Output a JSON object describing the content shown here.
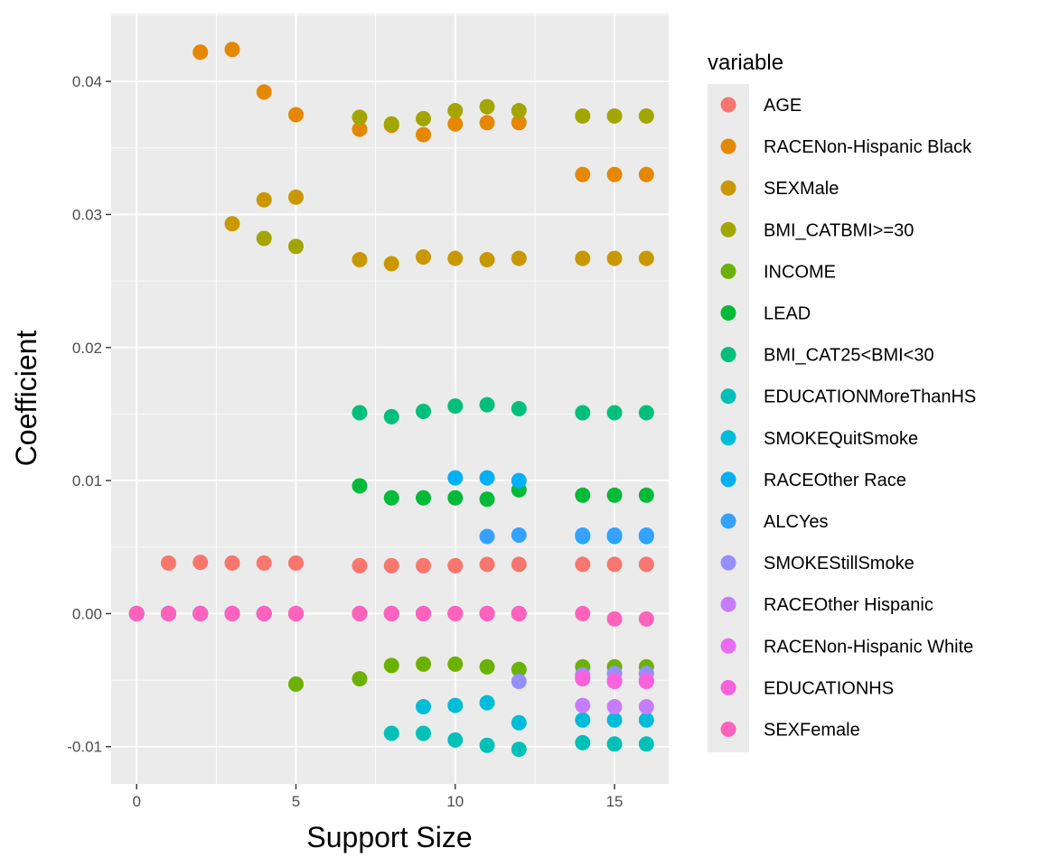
{
  "chart_data": {
    "type": "scatter",
    "title": "",
    "xlabel": "Support Size",
    "ylabel": "Coefficient",
    "xlim": [
      -0.8,
      16.7
    ],
    "ylim": [
      -0.0128,
      0.0451
    ],
    "x_ticks": [
      0,
      5,
      10,
      15
    ],
    "x_tick_labels": [
      "0",
      "5",
      "10",
      "15"
    ],
    "y_ticks": [
      -0.01,
      0.0,
      0.01,
      0.02,
      0.03,
      0.04
    ],
    "y_tick_labels": [
      "-0.01",
      "0.00",
      "0.01",
      "0.02",
      "0.03",
      "0.04"
    ],
    "grid": true,
    "legend_title": "variable",
    "legend_position": "right",
    "series": [
      {
        "name": "AGE",
        "color": "#F8766D",
        "x": [
          0,
          1,
          2,
          3,
          4,
          5,
          7,
          8,
          9,
          10,
          11,
          12,
          14,
          15,
          16
        ],
        "y": [
          0,
          0.0038,
          0.00385,
          0.0038,
          0.0038,
          0.0038,
          0.0036,
          0.0036,
          0.0036,
          0.0036,
          0.0037,
          0.0037,
          0.0037,
          0.0037,
          0.0037
        ]
      },
      {
        "name": "RACENon-Hispanic Black",
        "color": "#E58700",
        "x": [
          0,
          1,
          2,
          3,
          4,
          5,
          7,
          8,
          9,
          10,
          11,
          12,
          14,
          15,
          16
        ],
        "y": [
          0,
          0,
          0.0422,
          0.0424,
          0.0392,
          0.0375,
          0.0364,
          0.0367,
          0.036,
          0.0368,
          0.0369,
          0.0369,
          0.033,
          0.033,
          0.033
        ]
      },
      {
        "name": "SEXMale",
        "color": "#C99800",
        "x": [
          0,
          1,
          2,
          3,
          4,
          5,
          7,
          8,
          9,
          10,
          11,
          12,
          14,
          15,
          16
        ],
        "y": [
          0,
          0,
          0,
          0.0293,
          0.0311,
          0.0313,
          0.0266,
          0.0263,
          0.0268,
          0.0267,
          0.0266,
          0.0267,
          0.0267,
          0.0267,
          0.0267
        ]
      },
      {
        "name": "BMI_CATBMI>=30",
        "color": "#A3A500",
        "x": [
          0,
          1,
          2,
          3,
          4,
          5,
          7,
          8,
          9,
          10,
          11,
          12,
          14,
          15,
          16
        ],
        "y": [
          0,
          0,
          0,
          0,
          0.0282,
          0.0276,
          0.0373,
          0.0368,
          0.0372,
          0.0378,
          0.0381,
          0.0378,
          0.0374,
          0.0374,
          0.0374
        ]
      },
      {
        "name": "INCOME",
        "color": "#6BB100",
        "x": [
          0,
          1,
          2,
          3,
          4,
          5,
          7,
          8,
          9,
          10,
          11,
          12,
          14,
          15,
          16
        ],
        "y": [
          0,
          0,
          0,
          0,
          0,
          -0.0053,
          -0.0049,
          -0.0039,
          -0.0038,
          -0.0038,
          -0.004,
          -0.0042,
          -0.004,
          -0.004,
          -0.004
        ]
      },
      {
        "name": "LEAD",
        "color": "#00BA38",
        "x": [
          0,
          1,
          2,
          3,
          4,
          5,
          7,
          8,
          9,
          10,
          11,
          12,
          14,
          15,
          16
        ],
        "y": [
          0,
          0,
          0,
          0,
          0,
          0,
          0.0096,
          0.0087,
          0.0087,
          0.0087,
          0.0086,
          0.0093,
          0.0089,
          0.0089,
          0.0089
        ]
      },
      {
        "name": "BMI_CAT25<BMI<30",
        "color": "#00BF7D",
        "x": [
          0,
          1,
          2,
          3,
          4,
          5,
          7,
          8,
          9,
          10,
          11,
          12,
          14,
          15,
          16
        ],
        "y": [
          0,
          0,
          0,
          0,
          0,
          0,
          0.0151,
          0.0148,
          0.0152,
          0.0156,
          0.0157,
          0.0154,
          0.0151,
          0.0151,
          0.0151
        ]
      },
      {
        "name": "EDUCATIONMoreThanHS",
        "color": "#00C0B8",
        "x": [
          0,
          1,
          2,
          3,
          4,
          5,
          7,
          8,
          9,
          10,
          11,
          12,
          14,
          15,
          16
        ],
        "y": [
          0,
          0,
          0,
          0,
          0,
          0,
          0,
          -0.009,
          -0.009,
          -0.0095,
          -0.0099,
          -0.0102,
          -0.0097,
          -0.0098,
          -0.0098
        ]
      },
      {
        "name": "SMOKEQuitSmoke",
        "color": "#00BCD8",
        "x": [
          0,
          1,
          2,
          3,
          4,
          5,
          7,
          8,
          9,
          10,
          11,
          12,
          14,
          15,
          16
        ],
        "y": [
          0,
          0,
          0,
          0,
          0,
          0,
          0,
          0,
          -0.007,
          -0.0069,
          -0.0067,
          -0.0082,
          -0.008,
          -0.008,
          -0.008
        ]
      },
      {
        "name": "RACEOther Race",
        "color": "#00B0F6",
        "x": [
          0,
          1,
          2,
          3,
          4,
          5,
          7,
          8,
          9,
          10,
          11,
          12,
          14,
          15,
          16
        ],
        "y": [
          0,
          0,
          0,
          0,
          0,
          0,
          0,
          0,
          0,
          0.0102,
          0.0102,
          0.01,
          0.0058,
          0.0058,
          0.0058
        ]
      },
      {
        "name": "ALCYes",
        "color": "#35A2FF",
        "x": [
          0,
          1,
          2,
          3,
          4,
          5,
          7,
          8,
          9,
          10,
          11,
          12,
          14,
          15,
          16
        ],
        "y": [
          0,
          0,
          0,
          0,
          0,
          0,
          0,
          0,
          0,
          0,
          0.0058,
          0.0059,
          0.0059,
          0.0059,
          0.0059
        ]
      },
      {
        "name": "SMOKEStillSmoke",
        "color": "#9590FF",
        "x": [
          0,
          1,
          2,
          3,
          4,
          5,
          7,
          8,
          9,
          10,
          11,
          12,
          14,
          15,
          16
        ],
        "y": [
          0,
          0,
          0,
          0,
          0,
          0,
          0,
          0,
          0,
          0,
          0,
          -0.0051,
          -0.0046,
          -0.0045,
          -0.0045
        ]
      },
      {
        "name": "RACEOther Hispanic",
        "color": "#C77CFF",
        "x": [
          0,
          1,
          2,
          3,
          4,
          5,
          7,
          8,
          9,
          10,
          11,
          12,
          14,
          15,
          16
        ],
        "y": [
          0,
          0,
          0,
          0,
          0,
          0,
          0,
          0,
          0,
          0,
          0,
          0,
          -0.0069,
          -0.007,
          -0.007
        ]
      },
      {
        "name": "RACENon-Hispanic White",
        "color": "#E76BF3",
        "x": [
          0,
          1,
          2,
          3,
          4,
          5,
          7,
          8,
          9,
          10,
          11,
          12,
          14,
          15,
          16
        ],
        "y": [
          0,
          0,
          0,
          0,
          0,
          0,
          0,
          0,
          0,
          0,
          0,
          0,
          -0.0048,
          -0.005,
          -0.005
        ]
      },
      {
        "name": "EDUCATIONHS",
        "color": "#FA62DB",
        "x": [
          0,
          1,
          2,
          3,
          4,
          5,
          7,
          8,
          9,
          10,
          11,
          12,
          14,
          15,
          16
        ],
        "y": [
          0,
          0,
          0,
          0,
          0,
          0,
          0,
          0,
          0,
          0,
          0,
          0,
          -0.0049,
          -0.0051,
          -0.0051
        ]
      },
      {
        "name": "SEXFemale",
        "color": "#FF62BC",
        "x": [
          0,
          1,
          2,
          3,
          4,
          5,
          7,
          8,
          9,
          10,
          11,
          12,
          14,
          15,
          16
        ],
        "y": [
          0,
          0,
          0,
          0,
          0,
          0,
          0,
          0,
          0,
          0,
          0,
          0,
          0,
          -0.0004,
          -0.0004
        ]
      }
    ]
  }
}
